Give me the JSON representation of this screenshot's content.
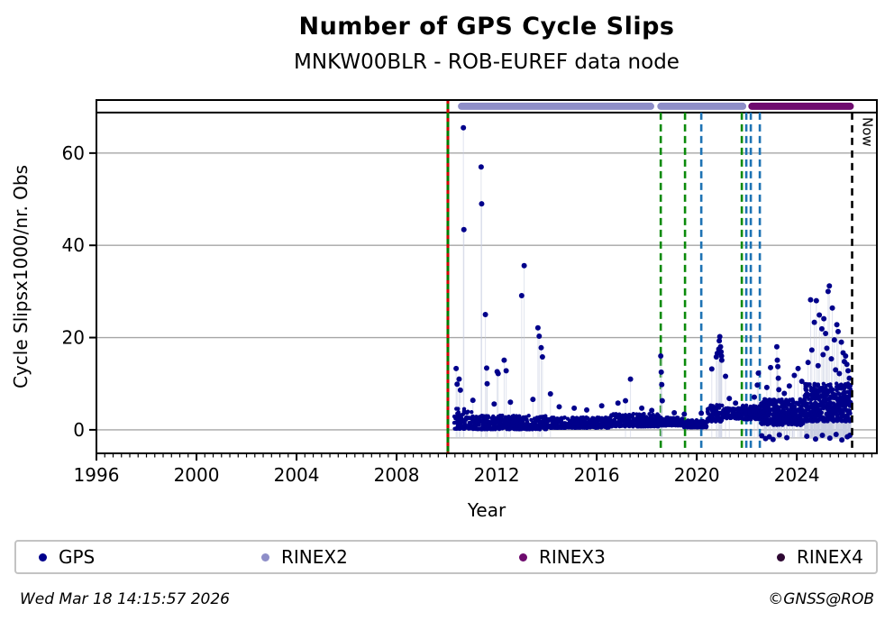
{
  "header": {
    "title": "Number of GPS Cycle Slips",
    "subtitle": "MNKW00BLR - ROB-EUREF data node"
  },
  "footer": {
    "timestamp": "Wed Mar 18 14:15:57 2026",
    "credit": "©GNSS@ROB"
  },
  "legend": {
    "items": [
      {
        "label": "GPS",
        "color": "#00008B"
      },
      {
        "label": "RINEX2",
        "color": "#8E8EC8"
      },
      {
        "label": "RINEX3",
        "color": "#6E0B6E"
      },
      {
        "label": "RINEX4",
        "color": "#2E0833"
      }
    ]
  },
  "colors": {
    "gps": "#00008B",
    "rinex2_bar": "#8E8EC8",
    "rinex3_bar": "#6E0B6E",
    "green_solid_line": "#007C00",
    "red_overlay_line": "#D40000",
    "green_dashed": "#0A8A0A",
    "blue_dashed": "#1E73B4",
    "grid": "#A6A6A6",
    "baseline": "#B4B4B4",
    "stem": "#C7CCE0",
    "now_line": "#000000"
  },
  "chart_data": {
    "type": "scatter",
    "title": "Number of GPS Cycle Slips",
    "subtitle": "MNKW00BLR - ROB-EUREF data node",
    "xlabel": "Year",
    "ylabel": "Cycle Slipsx1000/nr. Obs",
    "xlim": [
      1996,
      2027.2
    ],
    "ylim": [
      -5.1,
      71.5
    ],
    "x_major_ticks": [
      1996,
      2000,
      2004,
      2008,
      2012,
      2016,
      2020,
      2024
    ],
    "x_minor_step": 0.33333,
    "y_ticks": [
      0,
      20,
      40,
      60
    ],
    "grid": "horizontal",
    "strip_line_value": 68.8,
    "baseline_value": -1.76,
    "baseline_start_year": 2010.05,
    "now": {
      "year": 2026.21,
      "label": "Now"
    },
    "data_start_line": {
      "year": 2010.05
    },
    "event_lines": [
      {
        "year": 2018.56,
        "color": "green"
      },
      {
        "year": 2019.53,
        "color": "green"
      },
      {
        "year": 2020.18,
        "color": "blue"
      },
      {
        "year": 2021.8,
        "color": "green"
      },
      {
        "year": 2021.98,
        "color": "blue"
      },
      {
        "year": 2022.16,
        "color": "blue"
      },
      {
        "year": 2022.52,
        "color": "blue"
      }
    ],
    "availability_bars": [
      {
        "name": "RINEX2",
        "segments": [
          [
            2010.45,
            2018.3
          ],
          [
            2018.42,
            2021.98
          ]
        ]
      },
      {
        "name": "RINEX3",
        "segments": [
          [
            2022.06,
            2026.28
          ]
        ]
      }
    ],
    "series": [
      {
        "name": "GPS",
        "points": [
          [
            2010.38,
            13.3
          ],
          [
            2010.42,
            9.9
          ],
          [
            2010.5,
            11.0
          ],
          [
            2010.55,
            8.6
          ],
          [
            2010.67,
            65.5
          ],
          [
            2010.69,
            43.4
          ],
          [
            2011.05,
            6.4
          ],
          [
            2011.38,
            57.0
          ],
          [
            2011.4,
            49.0
          ],
          [
            2011.55,
            25.0
          ],
          [
            2011.6,
            13.4
          ],
          [
            2011.62,
            10.0
          ],
          [
            2011.9,
            5.6
          ],
          [
            2012.02,
            12.6
          ],
          [
            2012.06,
            12.2
          ],
          [
            2012.3,
            15.1
          ],
          [
            2012.38,
            12.8
          ],
          [
            2012.55,
            6.0
          ],
          [
            2013.0,
            29.1
          ],
          [
            2013.1,
            35.6
          ],
          [
            2013.45,
            6.6
          ],
          [
            2013.65,
            22.1
          ],
          [
            2013.7,
            20.3
          ],
          [
            2013.78,
            17.8
          ],
          [
            2013.83,
            15.8
          ],
          [
            2014.15,
            7.8
          ],
          [
            2014.5,
            5.0
          ],
          [
            2015.1,
            4.7
          ],
          [
            2015.6,
            4.3
          ],
          [
            2016.2,
            5.2
          ],
          [
            2016.85,
            5.8
          ],
          [
            2017.15,
            6.3
          ],
          [
            2017.35,
            11.0
          ],
          [
            2017.8,
            4.7
          ],
          [
            2018.2,
            4.2
          ],
          [
            2018.56,
            16.0
          ],
          [
            2018.58,
            12.5
          ],
          [
            2018.6,
            9.8
          ],
          [
            2018.62,
            6.3
          ],
          [
            2019.1,
            3.7
          ],
          [
            2019.5,
            3.4
          ],
          [
            2020.18,
            3.6
          ],
          [
            2020.6,
            13.2
          ],
          [
            2020.78,
            15.8
          ],
          [
            2020.82,
            16.6
          ],
          [
            2020.88,
            17.5
          ],
          [
            2020.9,
            19.3
          ],
          [
            2020.92,
            20.2
          ],
          [
            2020.95,
            18.0
          ],
          [
            2020.97,
            16.9
          ],
          [
            2020.99,
            16.0
          ],
          [
            2021.0,
            15.1
          ],
          [
            2021.15,
            11.6
          ],
          [
            2021.3,
            6.8
          ],
          [
            2021.55,
            5.8
          ],
          [
            2022.3,
            7.1
          ],
          [
            2022.42,
            9.7
          ],
          [
            2022.46,
            12.3
          ],
          [
            2022.8,
            9.2
          ],
          [
            2022.95,
            13.5
          ],
          [
            2023.2,
            18.0
          ],
          [
            2023.22,
            15.1
          ],
          [
            2023.24,
            13.7
          ],
          [
            2023.26,
            11.2
          ],
          [
            2023.28,
            8.7
          ],
          [
            2023.5,
            7.9
          ],
          [
            2023.7,
            9.5
          ],
          [
            2023.9,
            11.8
          ],
          [
            2024.05,
            13.3
          ],
          [
            2024.2,
            10.5
          ],
          [
            2024.45,
            14.6
          ],
          [
            2024.55,
            28.2
          ],
          [
            2024.6,
            17.3
          ],
          [
            2024.7,
            23.3
          ],
          [
            2024.78,
            28.0
          ],
          [
            2024.85,
            13.9
          ],
          [
            2024.9,
            24.9
          ],
          [
            2025.0,
            21.9
          ],
          [
            2025.05,
            16.3
          ],
          [
            2025.08,
            24.1
          ],
          [
            2025.15,
            20.9
          ],
          [
            2025.2,
            17.7
          ],
          [
            2025.25,
            30.0
          ],
          [
            2025.3,
            31.2
          ],
          [
            2025.38,
            15.4
          ],
          [
            2025.42,
            26.4
          ],
          [
            2025.5,
            19.5
          ],
          [
            2025.55,
            13.0
          ],
          [
            2025.6,
            22.8
          ],
          [
            2025.65,
            21.3
          ],
          [
            2025.7,
            12.2
          ],
          [
            2025.78,
            19.0
          ],
          [
            2025.85,
            16.7
          ],
          [
            2025.9,
            14.8
          ],
          [
            2025.95,
            16.0
          ],
          [
            2026.0,
            14.2
          ],
          [
            2026.05,
            12.8
          ],
          [
            2026.1,
            11.2
          ],
          [
            2022.6,
            -1.3
          ],
          [
            2022.75,
            -1.9
          ],
          [
            2022.9,
            -1.5
          ],
          [
            2023.05,
            -2.1
          ],
          [
            2023.3,
            -1.1
          ],
          [
            2023.6,
            -1.7
          ],
          [
            2024.4,
            -1.4
          ],
          [
            2024.75,
            -2.0
          ],
          [
            2025.02,
            -1.2
          ],
          [
            2025.32,
            -1.8
          ],
          [
            2025.57,
            -1.0
          ],
          [
            2025.8,
            -2.2
          ],
          [
            2026.02,
            -1.5
          ],
          [
            2026.12,
            -1.2
          ]
        ]
      }
    ],
    "base_band_segments": [
      [
        2010.3,
        2011.0,
        0.2,
        4.6,
        110,
        1.6
      ],
      [
        2011.0,
        2014.0,
        0.1,
        3.1,
        130,
        1.6
      ],
      [
        2014.0,
        2016.5,
        0.4,
        2.7,
        130,
        1.5
      ],
      [
        2016.5,
        2018.5,
        0.7,
        3.5,
        130,
        1.5
      ],
      [
        2018.5,
        2019.45,
        0.9,
        2.7,
        120,
        1.5
      ],
      [
        2019.45,
        2020.4,
        0.5,
        2.1,
        120,
        1.5
      ],
      [
        2020.4,
        2021.05,
        1.8,
        5.4,
        130,
        1.3
      ],
      [
        2021.05,
        2021.82,
        2.4,
        4.8,
        130,
        1.3
      ],
      [
        2021.82,
        2022.55,
        2.2,
        5.4,
        130,
        1.3
      ],
      [
        2022.55,
        2024.3,
        1.0,
        6.7,
        200,
        1.3
      ],
      [
        2024.3,
        2026.18,
        1.8,
        10.1,
        240,
        1.2
      ]
    ],
    "legend_position": "bottom",
    "legend_entries": [
      "GPS",
      "RINEX2",
      "RINEX3",
      "RINEX4"
    ]
  }
}
